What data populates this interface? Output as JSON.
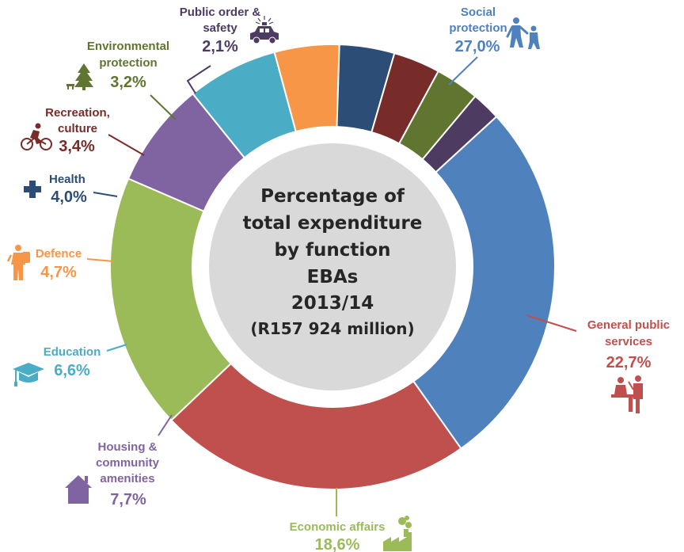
{
  "chart_data": {
    "type": "pie",
    "donut": true,
    "center_title_lines": [
      "Percentage of",
      "total expenditure",
      "by function",
      "EBAs",
      "2013/14",
      "(R157 924 million)"
    ],
    "slices": [
      {
        "name_lines": [
          "Social",
          "protection"
        ],
        "value": 27.0,
        "value_label": "27,0%",
        "color": "#4f81bd",
        "icon": "family-icon"
      },
      {
        "name_lines": [
          "General public",
          "services"
        ],
        "value": 22.7,
        "value_label": "22,7%",
        "color": "#c0504d",
        "icon": "officials-desk-icon"
      },
      {
        "name_lines": [
          "Economic affairs"
        ],
        "value": 18.6,
        "value_label": "18,6%",
        "color": "#9bbb59",
        "icon": "factory-icon"
      },
      {
        "name_lines": [
          "Housing &",
          "community",
          "amenities"
        ],
        "value": 7.7,
        "value_label": "7,7%",
        "color": "#8064a2",
        "icon": "house-icon"
      },
      {
        "name_lines": [
          "Education"
        ],
        "value": 6.6,
        "value_label": "6,6%",
        "color": "#4bacc6",
        "icon": "graduation-cap-icon"
      },
      {
        "name_lines": [
          "Defence"
        ],
        "value": 4.7,
        "value_label": "4,7%",
        "color": "#f79646",
        "icon": "soldier-icon"
      },
      {
        "name_lines": [
          "Health"
        ],
        "value": 4.0,
        "value_label": "4,0%",
        "color": "#2c4d75",
        "icon": "medical-cross-icon"
      },
      {
        "name_lines": [
          "Recreation,",
          "culture"
        ],
        "value": 3.4,
        "value_label": "3,4%",
        "color": "#772c2a",
        "icon": "cyclist-icon"
      },
      {
        "name_lines": [
          "Environmental",
          "protection"
        ],
        "value": 3.2,
        "value_label": "3,2%",
        "color": "#5f7530",
        "icon": "tree-icon"
      },
      {
        "name_lines": [
          "Public order &",
          "safety"
        ],
        "value": 2.1,
        "value_label": "2,1%",
        "color": "#4d3b62",
        "icon": "police-car-icon"
      }
    ]
  }
}
